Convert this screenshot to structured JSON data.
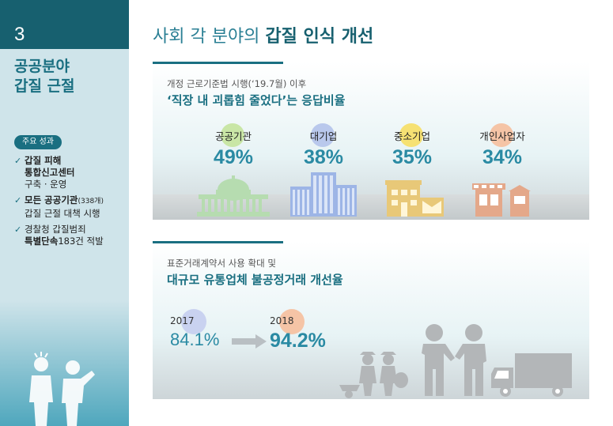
{
  "sidebar": {
    "section_number": "3",
    "section_title_line1": "공공분야",
    "section_title_line2": "갑질 근절",
    "badge": "주요 성과",
    "items": [
      {
        "bold1": "갑질 피해",
        "bold2": "통합신고센터",
        "rest": "구축 · 운영"
      },
      {
        "bold": "모든 공공기관",
        "small": "(338개)",
        "rest": "갑질 근절 대책 시행"
      },
      {
        "line1": "경찰청 갑질범죄",
        "bold": "특별단속",
        "rest": "183건 적발"
      }
    ]
  },
  "main": {
    "title_normal": "사회 각 분야의 ",
    "title_bold": "갑질 인식 개선"
  },
  "panel1": {
    "subtitle": "개정 근로기준법 시행(‘19.7월) 이후",
    "heading": "‘직장 내 괴롭힘 줄었다’는 응답비율",
    "stats": [
      {
        "label": "공공기관",
        "value": "49%",
        "color": "#c9e6a6"
      },
      {
        "label": "대기업",
        "value": "38%",
        "color": "#b9c8ec"
      },
      {
        "label": "중소기업",
        "value": "35%",
        "color": "#f6e173"
      },
      {
        "label": "개인사업자",
        "value": "34%",
        "color": "#f5c4a6"
      }
    ]
  },
  "panel2": {
    "subtitle": "표준거래계약서 사용 확대 및",
    "heading": "대규모 유통업체 불공정거래 개선율",
    "from_year": "2017",
    "from_value": "84.1%",
    "to_year": "2018",
    "to_value": "94.2%",
    "from_color": "#c9d2f0",
    "to_color": "#f5c4a6"
  }
}
